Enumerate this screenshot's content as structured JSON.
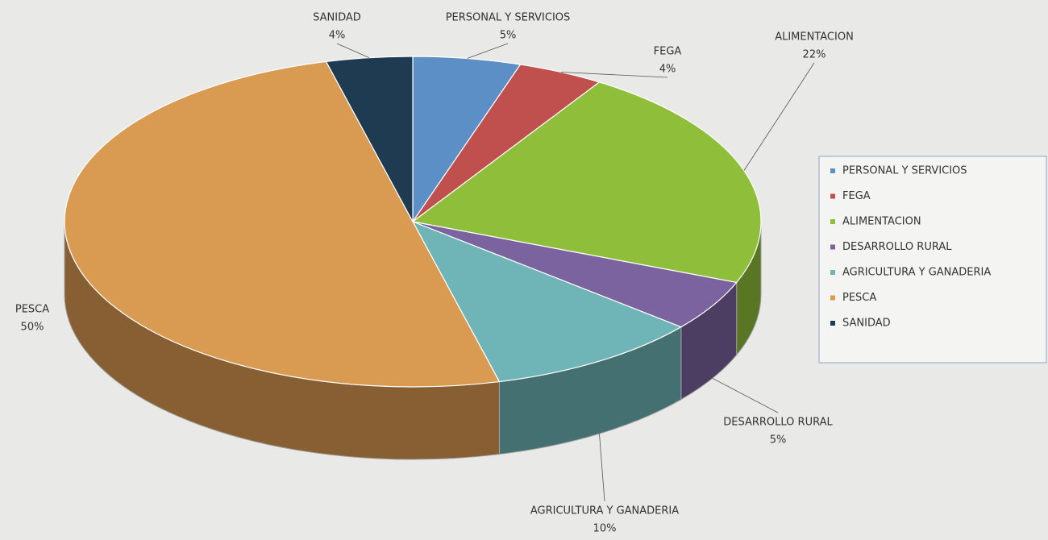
{
  "chart_data": {
    "type": "pie3d",
    "categories": [
      "PERSONAL Y SERVICIOS",
      "FEGA",
      "ALIMENTACION",
      "DESARROLLO RURAL",
      "AGRICULTURA Y GANADERIA",
      "PESCA",
      "SANIDAD"
    ],
    "values": [
      5,
      4,
      22,
      5,
      10,
      50,
      4
    ],
    "value_labels": [
      "5%",
      "4%",
      "22%",
      "5%",
      "10%",
      "50%",
      "4%"
    ],
    "colors": [
      "#5b8fc6",
      "#c0504d",
      "#8fbf3a",
      "#7b63a0",
      "#6fb4b6",
      "#d99a52",
      "#1f3b52"
    ],
    "legend": "right"
  }
}
